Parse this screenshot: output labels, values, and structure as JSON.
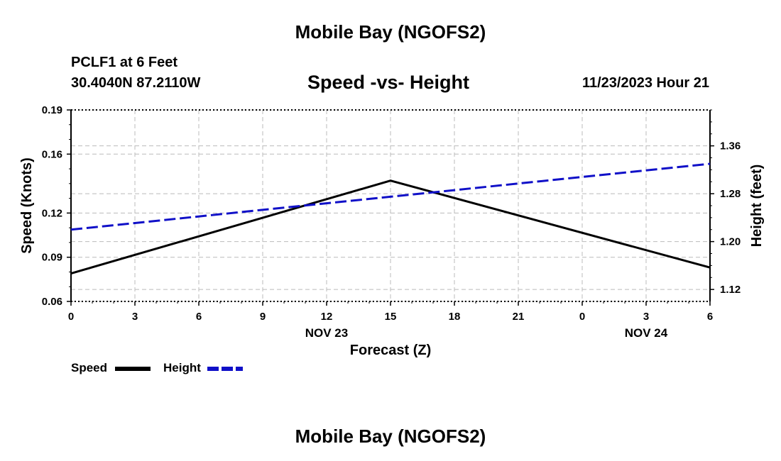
{
  "header": {
    "top_title": "Mobile Bay (NGOFS2)",
    "station": "PCLF1 at 6 Feet",
    "coords": "30.4040N  87.2110W",
    "datetime": "11/23/2023 Hour 21"
  },
  "footer": {
    "bottom_title": "Mobile Bay (NGOFS2)"
  },
  "colors": {
    "speed": "#000000",
    "height": "#1010c8",
    "grid": "#bbbbbb"
  },
  "chart_data": {
    "type": "line",
    "title": "Speed -vs- Height",
    "xlabel": "Forecast (Z)",
    "ylabel": "Speed (Knots)",
    "y2label": "Height (feet)",
    "x_tick_labels": [
      "0",
      "3",
      "6",
      "9",
      "12",
      "15",
      "18",
      "21",
      "0",
      "3",
      "6"
    ],
    "date_labels": [
      {
        "label": "NOV 23",
        "at_tick": 4
      },
      {
        "label": "NOV 24",
        "at_tick": 9
      }
    ],
    "ylim": [
      0.06,
      0.19
    ],
    "y_ticks": [
      "0.06",
      "0.09",
      "0.12",
      "0.16",
      "0.19"
    ],
    "y2lim": [
      1.1,
      1.42
    ],
    "y2_ticks": [
      "1.12",
      "1.20",
      "1.28",
      "1.36"
    ],
    "grid": true,
    "legend_placement": "bottom-left",
    "series": [
      {
        "name": "Speed",
        "axis": "left",
        "style": "solid",
        "x": [
          0,
          15,
          30
        ],
        "y": [
          0.079,
          0.142,
          0.083
        ]
      },
      {
        "name": "Height",
        "axis": "right",
        "style": "dashed",
        "x": [
          0,
          30
        ],
        "y": [
          1.22,
          1.33
        ]
      }
    ]
  }
}
